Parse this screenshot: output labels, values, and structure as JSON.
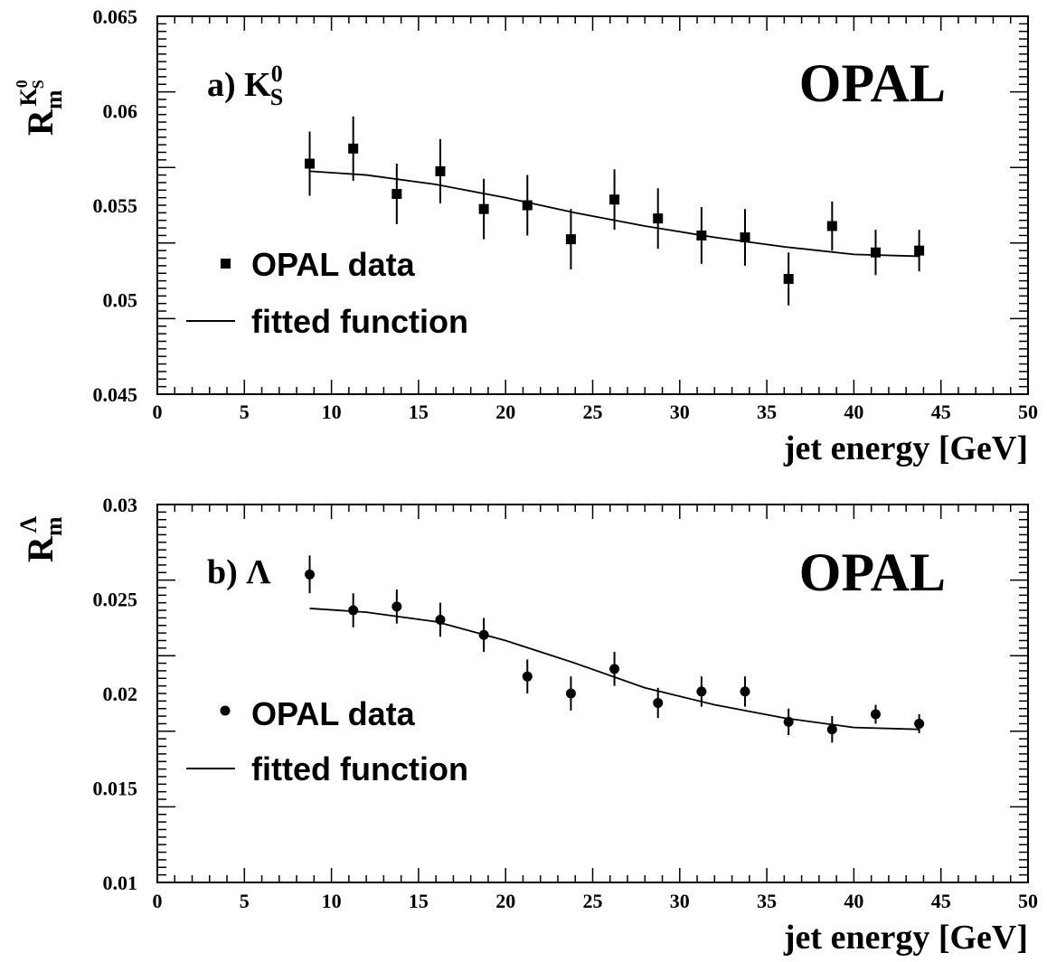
{
  "chart_data": [
    {
      "type": "scatter",
      "panel_label": {
        "prefix": "a) ",
        "main": "K",
        "sup": "0",
        "sub": "S"
      },
      "brand": "OPAL",
      "ylabel": {
        "main": "R",
        "sub": "m",
        "sup_main": "K",
        "sup_sup": "0",
        "sup_sub": "S"
      },
      "xlabel": "jet energy [GeV]",
      "xlim": [
        0,
        50
      ],
      "ylim": [
        0.045,
        0.065
      ],
      "xticks": [
        "0",
        "5",
        "10",
        "15",
        "20",
        "25",
        "30",
        "35",
        "40",
        "45",
        "50"
      ],
      "yticks": [
        "0.045",
        "0.05",
        "0.055",
        "0.06",
        "0.065"
      ],
      "legend": {
        "data_label": "OPAL data",
        "fit_label": "fitted function",
        "marker": "square"
      },
      "series": [
        {
          "name": "OPAL data",
          "x": [
            8.75,
            11.25,
            13.75,
            16.25,
            18.75,
            21.25,
            23.75,
            26.25,
            28.75,
            31.25,
            33.75,
            36.25,
            38.75,
            41.25,
            43.75
          ],
          "y": [
            0.0572,
            0.058,
            0.0556,
            0.0568,
            0.0548,
            0.055,
            0.0532,
            0.0553,
            0.0543,
            0.0534,
            0.0533,
            0.0511,
            0.0539,
            0.0525,
            0.0526
          ],
          "err": [
            0.0017,
            0.0017,
            0.0016,
            0.0017,
            0.0016,
            0.0016,
            0.0016,
            0.0016,
            0.0016,
            0.0015,
            0.0015,
            0.0014,
            0.0013,
            0.0012,
            0.0011
          ]
        },
        {
          "name": "fitted function",
          "x": [
            8.75,
            12,
            16,
            20,
            24,
            28,
            32,
            36,
            40,
            43.75
          ],
          "y": [
            0.0568,
            0.0566,
            0.0561,
            0.0554,
            0.0546,
            0.0539,
            0.0533,
            0.0528,
            0.0524,
            0.0523
          ]
        }
      ]
    },
    {
      "type": "scatter",
      "panel_label": {
        "prefix": "b) ",
        "main": "Λ"
      },
      "brand": "OPAL",
      "ylabel": {
        "main": "R",
        "sub": "m",
        "sup_main": "Λ"
      },
      "xlabel": "jet energy [GeV]",
      "xlim": [
        0,
        50
      ],
      "ylim": [
        0.01,
        0.03
      ],
      "xticks": [
        "0",
        "5",
        "10",
        "15",
        "20",
        "25",
        "30",
        "35",
        "40",
        "45",
        "50"
      ],
      "yticks": [
        "0.01",
        "0.015",
        "0.02",
        "0.025",
        "0.03"
      ],
      "legend": {
        "data_label": "OPAL data",
        "fit_label": "fitted function",
        "marker": "circle"
      },
      "series": [
        {
          "name": "OPAL data",
          "x": [
            8.75,
            11.25,
            13.75,
            16.25,
            18.75,
            21.25,
            23.75,
            26.25,
            28.75,
            31.25,
            33.75,
            36.25,
            38.75,
            41.25,
            43.75
          ],
          "y": [
            0.0263,
            0.0244,
            0.0246,
            0.0239,
            0.0231,
            0.0209,
            0.02,
            0.0213,
            0.0195,
            0.0201,
            0.0201,
            0.0185,
            0.0181,
            0.0189,
            0.0184
          ],
          "err": [
            0.001,
            0.0009,
            0.0009,
            0.0009,
            0.0009,
            0.0009,
            0.0009,
            0.0009,
            0.0008,
            0.0008,
            0.0008,
            0.0007,
            0.0007,
            0.0005,
            0.0005
          ]
        },
        {
          "name": "fitted function",
          "x": [
            8.75,
            12,
            16,
            20,
            24,
            28,
            32,
            36,
            40,
            43.75
          ],
          "y": [
            0.0245,
            0.0243,
            0.0238,
            0.0228,
            0.0216,
            0.0203,
            0.0194,
            0.0187,
            0.0182,
            0.0181
          ]
        }
      ]
    }
  ]
}
